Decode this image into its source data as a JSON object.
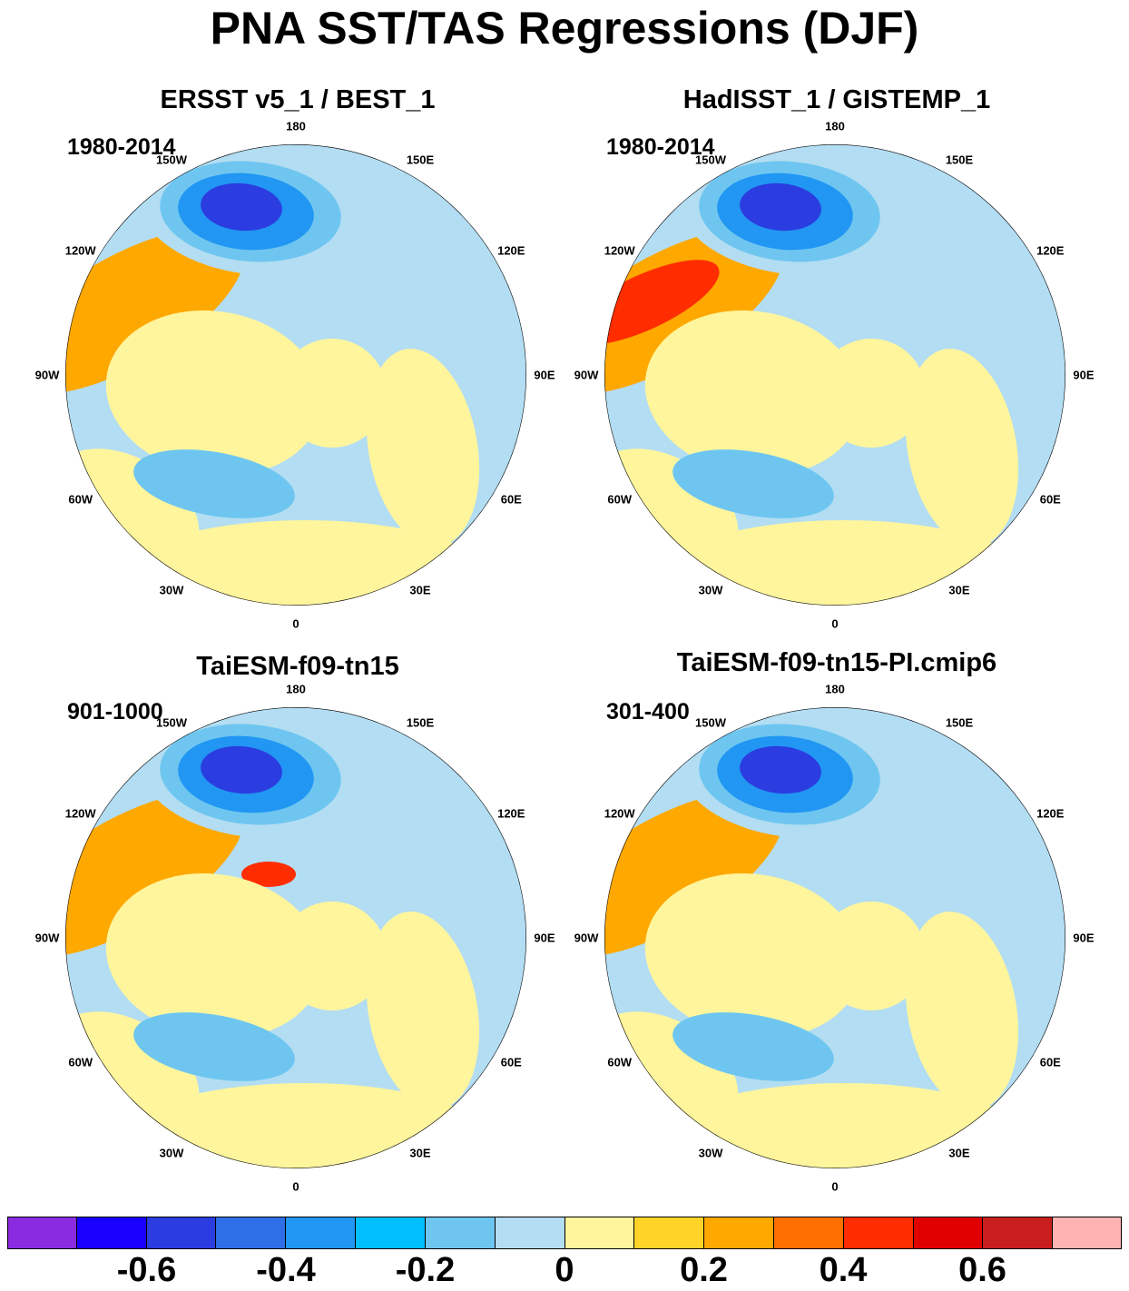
{
  "title": "PNA SST/TAS Regressions (DJF)",
  "panels": [
    {
      "title": "ERSST v5_1 / BEST_1",
      "period": "1980-2014"
    },
    {
      "title": "HadISST_1 / GISTEMP_1",
      "period": "1980-2014"
    },
    {
      "title": "TaiESM-f09-tn15",
      "period": "901-1000"
    },
    {
      "title": "TaiESM-f09-tn15-PI.cmip6",
      "period": "301-400"
    }
  ],
  "lon_labels": [
    "180",
    "150E",
    "120E",
    "90E",
    "60E",
    "30E",
    "0",
    "30W",
    "60W",
    "90W",
    "120W",
    "150W"
  ],
  "colorbar": {
    "colors": [
      "#8a2be2",
      "#1a00ff",
      "#2b3de0",
      "#2e6ee6",
      "#2196f3",
      "#00bfff",
      "#6ec6f0",
      "#b3ddf2",
      "#fff59d",
      "#ffd327",
      "#ffa800",
      "#ff7000",
      "#ff2d00",
      "#e00000",
      "#c81e1e",
      "#ffb3b3"
    ],
    "tick_labels": [
      "-0.6",
      "-0.4",
      "-0.2",
      "0",
      "0.2",
      "0.4",
      "0.6"
    ]
  },
  "palette": {
    "ocean_pos": "#fff59d",
    "ocean_neg": "#b3ddf2",
    "strong_neg": "#2196f3",
    "deep_neg": "#2b3de0",
    "warm": "#ffa800",
    "hot": "#ff2d00"
  }
}
